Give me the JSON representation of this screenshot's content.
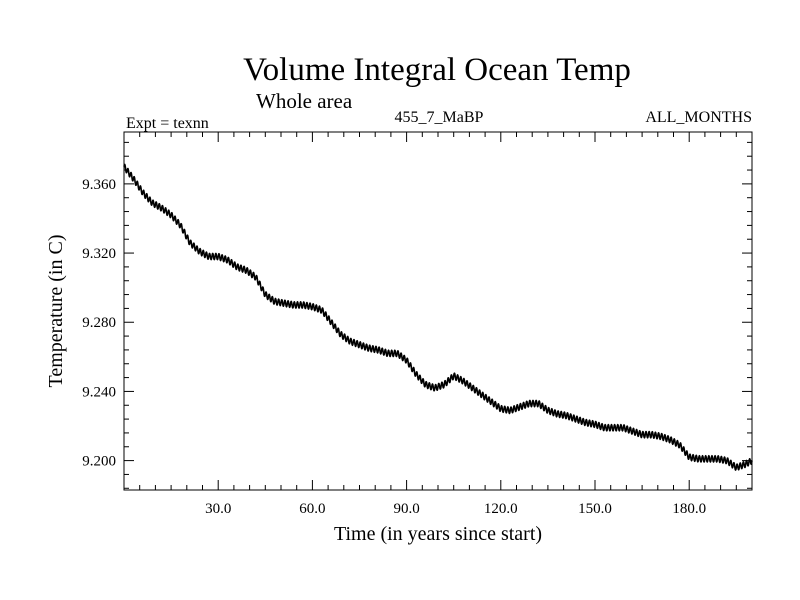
{
  "chart_data": {
    "type": "line",
    "title": "Volume Integral Ocean Temp",
    "subtitle": "Whole area",
    "header_left": "Expt = texnn",
    "header_center": "455_7_MaBP",
    "header_right": "ALL_MONTHS",
    "xlabel": "Time (in years since start)",
    "ylabel": "Temperature (in C)",
    "xlim": [
      0,
      200
    ],
    "ylim": [
      9.183,
      9.39
    ],
    "xticks": [
      30,
      60,
      90,
      120,
      150,
      180
    ],
    "xtick_labels": [
      "30.0",
      "60.0",
      "90.0",
      "120.0",
      "150.0",
      "180.0"
    ],
    "yticks": [
      9.2,
      9.24,
      9.28,
      9.32,
      9.36
    ],
    "ytick_labels": [
      "9.200",
      "9.240",
      "9.280",
      "9.320",
      "9.360"
    ],
    "x_minor_step": 5,
    "y_minor_step": 0.008,
    "grid": false,
    "seasonal_amplitude": 0.0018,
    "series": [
      {
        "name": "Volume integral ocean temperature",
        "color": "#000000",
        "x": [
          0,
          3,
          6,
          9,
          12,
          15,
          18,
          21,
          24,
          27,
          30,
          33,
          36,
          39,
          42,
          45,
          48,
          51,
          54,
          57,
          60,
          63,
          66,
          69,
          72,
          75,
          78,
          81,
          84,
          87,
          90,
          93,
          96,
          99,
          102,
          105,
          108,
          111,
          114,
          117,
          120,
          123,
          126,
          129,
          132,
          135,
          138,
          141,
          144,
          147,
          150,
          153,
          156,
          159,
          162,
          165,
          168,
          171,
          174,
          177,
          180,
          183,
          186,
          189,
          192,
          195,
          198,
          200
        ],
        "values": [
          9.37,
          9.363,
          9.355,
          9.349,
          9.346,
          9.342,
          9.336,
          9.326,
          9.321,
          9.318,
          9.318,
          9.316,
          9.312,
          9.31,
          9.306,
          9.296,
          9.292,
          9.291,
          9.29,
          9.29,
          9.289,
          9.287,
          9.28,
          9.273,
          9.269,
          9.267,
          9.265,
          9.264,
          9.262,
          9.262,
          9.258,
          9.25,
          9.244,
          9.242,
          9.244,
          9.249,
          9.246,
          9.242,
          9.238,
          9.234,
          9.23,
          9.229,
          9.231,
          9.233,
          9.233,
          9.229,
          9.227,
          9.226,
          9.224,
          9.222,
          9.221,
          9.219,
          9.219,
          9.219,
          9.217,
          9.215,
          9.215,
          9.214,
          9.212,
          9.209,
          9.202,
          9.201,
          9.201,
          9.201,
          9.2,
          9.196,
          9.198,
          9.2
        ]
      }
    ]
  }
}
